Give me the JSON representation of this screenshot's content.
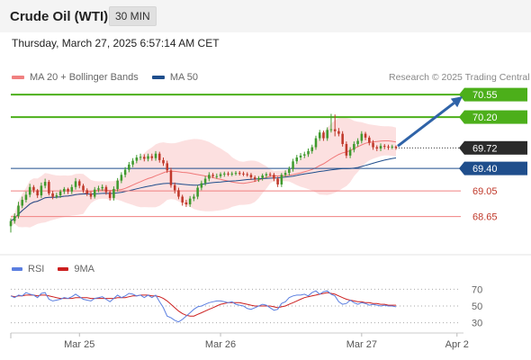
{
  "header": {
    "instrument": "Crude Oil (WTI)",
    "timeframe": "30 MIN"
  },
  "timestamp": "Thursday, March 27, 2025 6:57:14 AM CET",
  "credit": "Research © 2025 Trading Central",
  "colors": {
    "green_level": "#4caf1a",
    "red_level": "#f08080",
    "blue_level": "#1f4e8c",
    "last_price_badge": "#2b2b2b",
    "bollinger_fill": "#fbd5d5",
    "ma20": "#f07878",
    "ma50": "#1f4e8c",
    "candle_up": "#3f9a2e",
    "candle_down": "#c0392b",
    "rsi": "#5b7fe0",
    "rsi_ma": "#cc1f1f",
    "arrow": "#2f63a8"
  },
  "chart_data": [
    {
      "type": "candlestick",
      "title": "",
      "legend": [
        {
          "name": "MA 20 + Bollinger Bands",
          "color": "#f08080"
        },
        {
          "name": "MA 50",
          "color": "#1f4e8c"
        }
      ],
      "legend_position": "top-left",
      "x_labels": [
        "Mar 25",
        "Mar 26",
        "Mar 27",
        "Apr 2"
      ],
      "x_range": [
        0,
        118
      ],
      "x_label_positions": [
        18,
        55,
        92,
        117
      ],
      "ylim": [
        68.35,
        70.65
      ],
      "price_levels": [
        {
          "label": "70.55",
          "value": 70.55,
          "color": "#4caf1a",
          "kind": "resistance"
        },
        {
          "label": "70.20",
          "value": 70.2,
          "color": "#4caf1a",
          "kind": "resistance"
        },
        {
          "label": "69.72",
          "value": 69.72,
          "color": "#2b2b2b",
          "kind": "last"
        },
        {
          "label": "69.40",
          "value": 69.4,
          "color": "#1f4e8c",
          "kind": "pivot"
        },
        {
          "label": "69.05",
          "value": 69.05,
          "color": "#f08080",
          "kind": "support"
        },
        {
          "label": "68.65",
          "value": 68.65,
          "color": "#f08080",
          "kind": "support"
        }
      ],
      "target_arrow": {
        "from_index": 101,
        "from_value": 69.72,
        "to_value": 70.55
      },
      "closes": [
        68.58,
        68.66,
        68.82,
        68.91,
        68.99,
        69.11,
        69.06,
        68.98,
        69.13,
        69.19,
        69.01,
        68.96,
        68.98,
        69.04,
        69.08,
        69.04,
        69.11,
        69.2,
        69.13,
        69.06,
        69.01,
        68.96,
        69.07,
        69.09,
        69.11,
        69.03,
        68.94,
        69.08,
        69.21,
        69.3,
        69.38,
        69.46,
        69.52,
        69.57,
        69.58,
        69.55,
        69.59,
        69.56,
        69.63,
        69.53,
        69.48,
        69.37,
        69.14,
        69.06,
        68.96,
        68.87,
        68.84,
        68.93,
        68.96,
        69.1,
        69.17,
        69.24,
        69.3,
        69.28,
        69.28,
        69.31,
        69.32,
        69.31,
        69.32,
        69.33,
        69.32,
        69.31,
        69.3,
        69.26,
        69.23,
        69.25,
        69.29,
        69.31,
        69.3,
        69.24,
        69.15,
        69.3,
        69.33,
        69.39,
        69.51,
        69.57,
        69.6,
        69.62,
        69.67,
        69.73,
        69.87,
        69.96,
        69.87,
        70.0,
        70.01,
        69.98,
        69.94,
        69.78,
        69.6,
        69.69,
        69.78,
        69.83,
        69.94,
        69.88,
        69.8,
        69.73,
        69.71,
        69.75,
        69.74,
        69.73,
        69.74,
        69.72
      ],
      "opens": [
        68.5,
        68.58,
        68.66,
        68.82,
        68.91,
        68.99,
        69.11,
        69.06,
        68.98,
        69.13,
        69.19,
        69.01,
        68.96,
        68.98,
        69.04,
        69.08,
        69.04,
        69.11,
        69.2,
        69.13,
        69.06,
        69.01,
        68.96,
        69.07,
        69.09,
        69.11,
        69.03,
        68.94,
        69.08,
        69.21,
        69.3,
        69.38,
        69.46,
        69.52,
        69.57,
        69.58,
        69.55,
        69.59,
        69.56,
        69.63,
        69.53,
        69.48,
        69.37,
        69.14,
        69.06,
        68.96,
        68.87,
        68.84,
        68.93,
        68.96,
        69.1,
        69.17,
        69.24,
        69.3,
        69.28,
        69.28,
        69.31,
        69.32,
        69.31,
        69.32,
        69.33,
        69.32,
        69.31,
        69.3,
        69.26,
        69.23,
        69.25,
        69.29,
        69.31,
        69.3,
        69.24,
        69.15,
        69.3,
        69.33,
        69.39,
        69.51,
        69.57,
        69.6,
        69.62,
        69.67,
        69.73,
        69.87,
        69.96,
        69.87,
        70.0,
        70.01,
        69.98,
        69.94,
        69.78,
        69.6,
        69.69,
        69.78,
        69.83,
        69.94,
        69.88,
        69.8,
        69.73,
        69.71,
        69.75,
        69.74,
        69.73,
        69.74
      ],
      "highs": [
        68.62,
        68.7,
        68.88,
        68.96,
        69.04,
        69.16,
        69.14,
        69.08,
        69.18,
        69.24,
        69.22,
        69.05,
        69.02,
        69.07,
        69.11,
        69.1,
        69.15,
        69.25,
        69.23,
        69.16,
        69.09,
        69.04,
        69.11,
        69.13,
        69.15,
        69.14,
        69.06,
        69.12,
        69.25,
        69.34,
        69.42,
        69.5,
        69.56,
        69.61,
        69.63,
        69.62,
        69.63,
        69.63,
        69.67,
        69.66,
        69.57,
        69.52,
        69.41,
        69.18,
        69.1,
        68.99,
        68.91,
        68.97,
        69.0,
        69.14,
        69.21,
        69.28,
        69.34,
        69.33,
        69.32,
        69.34,
        69.35,
        69.35,
        69.35,
        69.36,
        69.36,
        69.35,
        69.34,
        69.33,
        69.29,
        69.28,
        69.32,
        69.34,
        69.34,
        69.33,
        69.27,
        69.33,
        69.37,
        69.43,
        69.55,
        69.61,
        69.64,
        69.66,
        69.71,
        69.77,
        69.91,
        70.0,
        69.99,
        70.04,
        70.25,
        70.24,
        70.03,
        69.98,
        69.82,
        69.73,
        69.82,
        69.87,
        69.98,
        69.97,
        69.91,
        69.84,
        69.76,
        69.79,
        69.78,
        69.77,
        69.77,
        69.76
      ],
      "lows": [
        68.4,
        68.54,
        68.62,
        68.78,
        68.87,
        68.95,
        69.02,
        68.94,
        68.94,
        69.09,
        68.98,
        68.92,
        68.93,
        68.94,
        69.0,
        69.0,
        69.0,
        69.07,
        69.09,
        69.02,
        68.97,
        68.92,
        68.93,
        69.03,
        69.05,
        68.99,
        68.9,
        68.9,
        69.04,
        69.17,
        69.26,
        69.34,
        69.42,
        69.48,
        69.53,
        69.51,
        69.51,
        69.52,
        69.52,
        69.49,
        69.44,
        69.33,
        69.1,
        69.01,
        68.92,
        68.82,
        68.8,
        68.8,
        68.89,
        68.92,
        69.06,
        69.13,
        69.2,
        69.25,
        69.24,
        69.25,
        69.27,
        69.28,
        69.28,
        69.29,
        69.29,
        69.28,
        69.27,
        69.22,
        69.19,
        69.19,
        69.21,
        69.25,
        69.27,
        69.2,
        69.11,
        69.11,
        69.26,
        69.29,
        69.35,
        69.47,
        69.53,
        69.56,
        69.58,
        69.63,
        69.69,
        69.83,
        69.83,
        69.83,
        69.96,
        69.9,
        69.9,
        69.74,
        69.56,
        69.56,
        69.65,
        69.74,
        69.79,
        69.84,
        69.76,
        69.69,
        69.67,
        69.67,
        69.7,
        69.69,
        69.7,
        69.69
      ]
    },
    {
      "type": "line",
      "title": "",
      "legend": [
        {
          "name": "RSI",
          "color": "#5b7fe0"
        },
        {
          "name": "9MA",
          "color": "#cc1f1f"
        }
      ],
      "legend_position": "top-left",
      "ylim": [
        20,
        80
      ],
      "y_ticks": [
        70,
        50,
        30
      ],
      "series": [
        {
          "name": "RSI",
          "values": [
            62,
            60,
            63,
            62,
            66,
            64,
            63,
            60,
            65,
            66,
            58,
            56,
            57,
            58,
            60,
            59,
            61,
            64,
            61,
            58,
            57,
            56,
            59,
            60,
            61,
            58,
            55,
            59,
            63,
            60,
            62,
            65,
            64,
            62,
            63,
            60,
            63,
            60,
            63,
            55,
            48,
            38,
            36,
            33,
            31,
            34,
            38,
            42,
            46,
            49,
            50,
            52,
            54,
            55,
            56,
            56,
            55,
            54,
            55,
            52,
            51,
            50,
            47,
            46,
            48,
            50,
            52,
            51,
            48,
            45,
            46,
            53,
            55,
            60,
            62,
            63,
            63,
            64,
            62,
            66,
            68,
            64,
            67,
            68,
            64,
            62,
            55,
            52,
            53,
            57,
            54,
            52,
            54,
            53,
            51,
            52,
            51,
            50,
            51,
            50,
            50,
            49
          ]
        },
        {
          "name": "9MA",
          "values": [
            62,
            61,
            62,
            62,
            63,
            63,
            63,
            62,
            63,
            63,
            62,
            61,
            60,
            59,
            59,
            59,
            59,
            60,
            60,
            60,
            60,
            59,
            59,
            59,
            59,
            59,
            59,
            59,
            60,
            60,
            60,
            61,
            62,
            62,
            63,
            63,
            63,
            62,
            62,
            61,
            59,
            56,
            52,
            48,
            44,
            41,
            39,
            38,
            38,
            40,
            42,
            44,
            46,
            48,
            50,
            52,
            53,
            54,
            54,
            54,
            54,
            53,
            52,
            51,
            50,
            50,
            50,
            50,
            50,
            49,
            48,
            49,
            50,
            52,
            54,
            56,
            58,
            60,
            61,
            62,
            63,
            64,
            65,
            66,
            65,
            64,
            62,
            60,
            58,
            57,
            56,
            55,
            55,
            54,
            54,
            53,
            53,
            52,
            52,
            51,
            51,
            51
          ]
        }
      ]
    }
  ]
}
